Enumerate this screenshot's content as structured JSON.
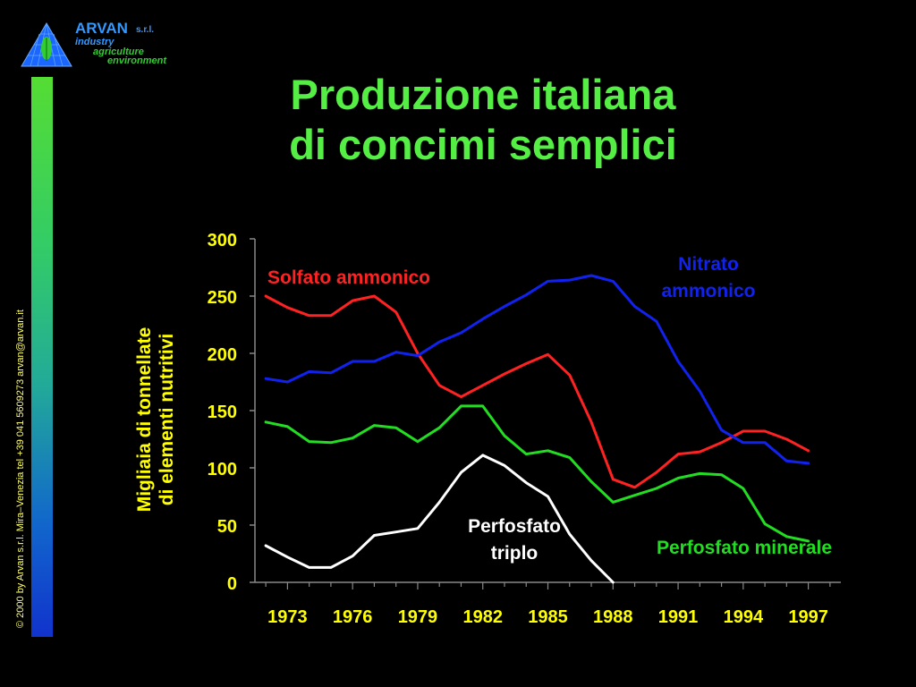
{
  "logo": {
    "name": "ARVAN",
    "suffix": "s.r.l.",
    "line1": "industry",
    "line2": "agriculture",
    "line3": "environment"
  },
  "copyright": "© 2000 by Arvan s.r.l. Mira–Venezia tel +39 041 5609273 arvan@arvan.it",
  "title": {
    "line1": "Produzione italiana",
    "line2": "di concimi semplici"
  },
  "colors": {
    "background": "#000000",
    "title": "#55ee44",
    "axis_text": "#ffff00",
    "solfato": "#ff2222",
    "nitrato": "#1122ee",
    "minerale": "#22dd22",
    "triplo": "#ffffff"
  },
  "chart_data": {
    "type": "line",
    "title": "Produzione italiana di concimi semplici",
    "ylabel": "Migliaia di tonnellate di elementi nutritivi",
    "xlabel": "",
    "ylim": [
      0,
      300
    ],
    "yticks": [
      0,
      50,
      100,
      150,
      200,
      250,
      300
    ],
    "xticks": [
      1973,
      1976,
      1979,
      1982,
      1985,
      1988,
      1991,
      1994,
      1997
    ],
    "xlim": [
      1971.5,
      1998.5
    ],
    "grid": false,
    "series": [
      {
        "name": "Solfato ammonico",
        "color": "#ff2222",
        "x": [
          1972,
          1973,
          1974,
          1975,
          1976,
          1977,
          1978,
          1979,
          1980,
          1981,
          1982,
          1983,
          1984,
          1985,
          1986,
          1987,
          1988,
          1989,
          1990,
          1991,
          1992,
          1993,
          1994,
          1995,
          1996,
          1997,
          1998
        ],
        "values": [
          250,
          240,
          233,
          233,
          246,
          250,
          236,
          200,
          172,
          162,
          172,
          182,
          191,
          199,
          181,
          140,
          90,
          83,
          96,
          112,
          114,
          122,
          132,
          132,
          125,
          115,
          null
        ]
      },
      {
        "name": "Nitrato ammonico",
        "color": "#1122ee",
        "x": [
          1972,
          1973,
          1974,
          1975,
          1976,
          1977,
          1978,
          1979,
          1980,
          1981,
          1982,
          1983,
          1984,
          1985,
          1986,
          1987,
          1988,
          1989,
          1990,
          1991,
          1992,
          1993,
          1994,
          1995,
          1996,
          1997,
          1998
        ],
        "values": [
          178,
          175,
          184,
          183,
          193,
          193,
          201,
          198,
          210,
          218,
          230,
          241,
          251,
          263,
          264,
          268,
          263,
          241,
          228,
          193,
          167,
          133,
          122,
          122,
          106,
          104,
          null
        ]
      },
      {
        "name": "Perfosfato minerale",
        "color": "#22dd22",
        "x": [
          1972,
          1973,
          1974,
          1975,
          1976,
          1977,
          1978,
          1979,
          1980,
          1981,
          1982,
          1983,
          1984,
          1985,
          1986,
          1987,
          1988,
          1989,
          1990,
          1991,
          1992,
          1993,
          1994,
          1995,
          1996,
          1997,
          1998
        ],
        "values": [
          140,
          136,
          123,
          122,
          126,
          137,
          135,
          123,
          135,
          154,
          154,
          128,
          112,
          115,
          109,
          88,
          70,
          76,
          82,
          91,
          95,
          94,
          82,
          51,
          40,
          36,
          null
        ]
      },
      {
        "name": "Perfosfato triplo",
        "color": "#ffffff",
        "x": [
          1972,
          1973,
          1974,
          1975,
          1976,
          1977,
          1978,
          1979,
          1980,
          1981,
          1982,
          1983,
          1984,
          1985,
          1986,
          1987,
          1988
        ],
        "values": [
          32,
          22,
          13,
          13,
          23,
          41,
          44,
          47,
          70,
          96,
          111,
          102,
          87,
          75,
          42,
          19,
          0
        ]
      }
    ],
    "annotations": [
      {
        "series": "Solfato ammonico",
        "lines": [
          "Solfato ammonico"
        ]
      },
      {
        "series": "Nitrato ammonico",
        "lines": [
          "Nitrato",
          "ammonico"
        ]
      },
      {
        "series": "Perfosfato triplo",
        "lines": [
          "Perfosfato",
          "triplo"
        ]
      },
      {
        "series": "Perfosfato minerale",
        "lines": [
          "Perfosfato minerale"
        ]
      }
    ]
  }
}
